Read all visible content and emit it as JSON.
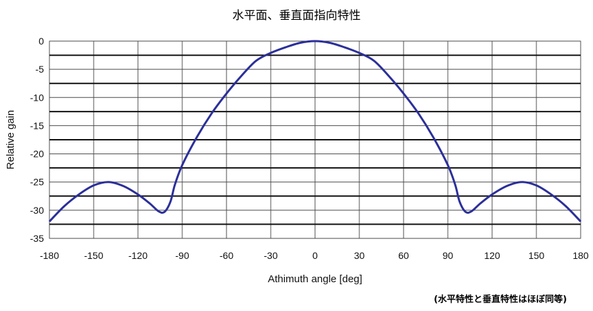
{
  "chart_data": {
    "type": "line",
    "title": "水平面、垂直面指向特性",
    "xlabel": "Athimuth angle [deg]",
    "ylabel": "Relative gain",
    "note": "(水平特性と垂直特性はほぼ同等)",
    "xlim": [
      -180,
      180
    ],
    "ylim": [
      -35,
      0
    ],
    "xticks": [
      -180,
      -150,
      -120,
      -90,
      -60,
      -30,
      0,
      30,
      60,
      90,
      120,
      150,
      180
    ],
    "yticks": [
      0,
      -5,
      -10,
      -15,
      -20,
      -25,
      -30,
      -35
    ],
    "grid": true,
    "line_color": "#2b2f9a",
    "series": [
      {
        "values": [
          [
            -180,
            -32
          ],
          [
            -170,
            -29.3
          ],
          [
            -160,
            -27.2
          ],
          [
            -150,
            -25.6
          ],
          [
            -140,
            -25
          ],
          [
            -130,
            -25.7
          ],
          [
            -120,
            -27.2
          ],
          [
            -112,
            -28.8
          ],
          [
            -106,
            -30.2
          ],
          [
            -102,
            -30.3
          ],
          [
            -98,
            -28.5
          ],
          [
            -95,
            -25.5
          ],
          [
            -90,
            -22
          ],
          [
            -80,
            -17
          ],
          [
            -70,
            -12.8
          ],
          [
            -60,
            -9.3
          ],
          [
            -50,
            -6.2
          ],
          [
            -40,
            -3.5
          ],
          [
            -30,
            -2.1
          ],
          [
            -20,
            -1.1
          ],
          [
            -10,
            -0.3
          ],
          [
            0,
            0
          ],
          [
            10,
            -0.3
          ],
          [
            20,
            -1.1
          ],
          [
            30,
            -2.1
          ],
          [
            40,
            -3.5
          ],
          [
            50,
            -6.2
          ],
          [
            60,
            -9.3
          ],
          [
            70,
            -12.8
          ],
          [
            80,
            -17
          ],
          [
            90,
            -22
          ],
          [
            95,
            -25.5
          ],
          [
            98,
            -28.5
          ],
          [
            102,
            -30.3
          ],
          [
            106,
            -30.2
          ],
          [
            112,
            -28.8
          ],
          [
            120,
            -27.2
          ],
          [
            130,
            -25.7
          ],
          [
            140,
            -25
          ],
          [
            150,
            -25.6
          ],
          [
            160,
            -27.2
          ],
          [
            170,
            -29.3
          ],
          [
            180,
            -32
          ]
        ]
      }
    ]
  }
}
